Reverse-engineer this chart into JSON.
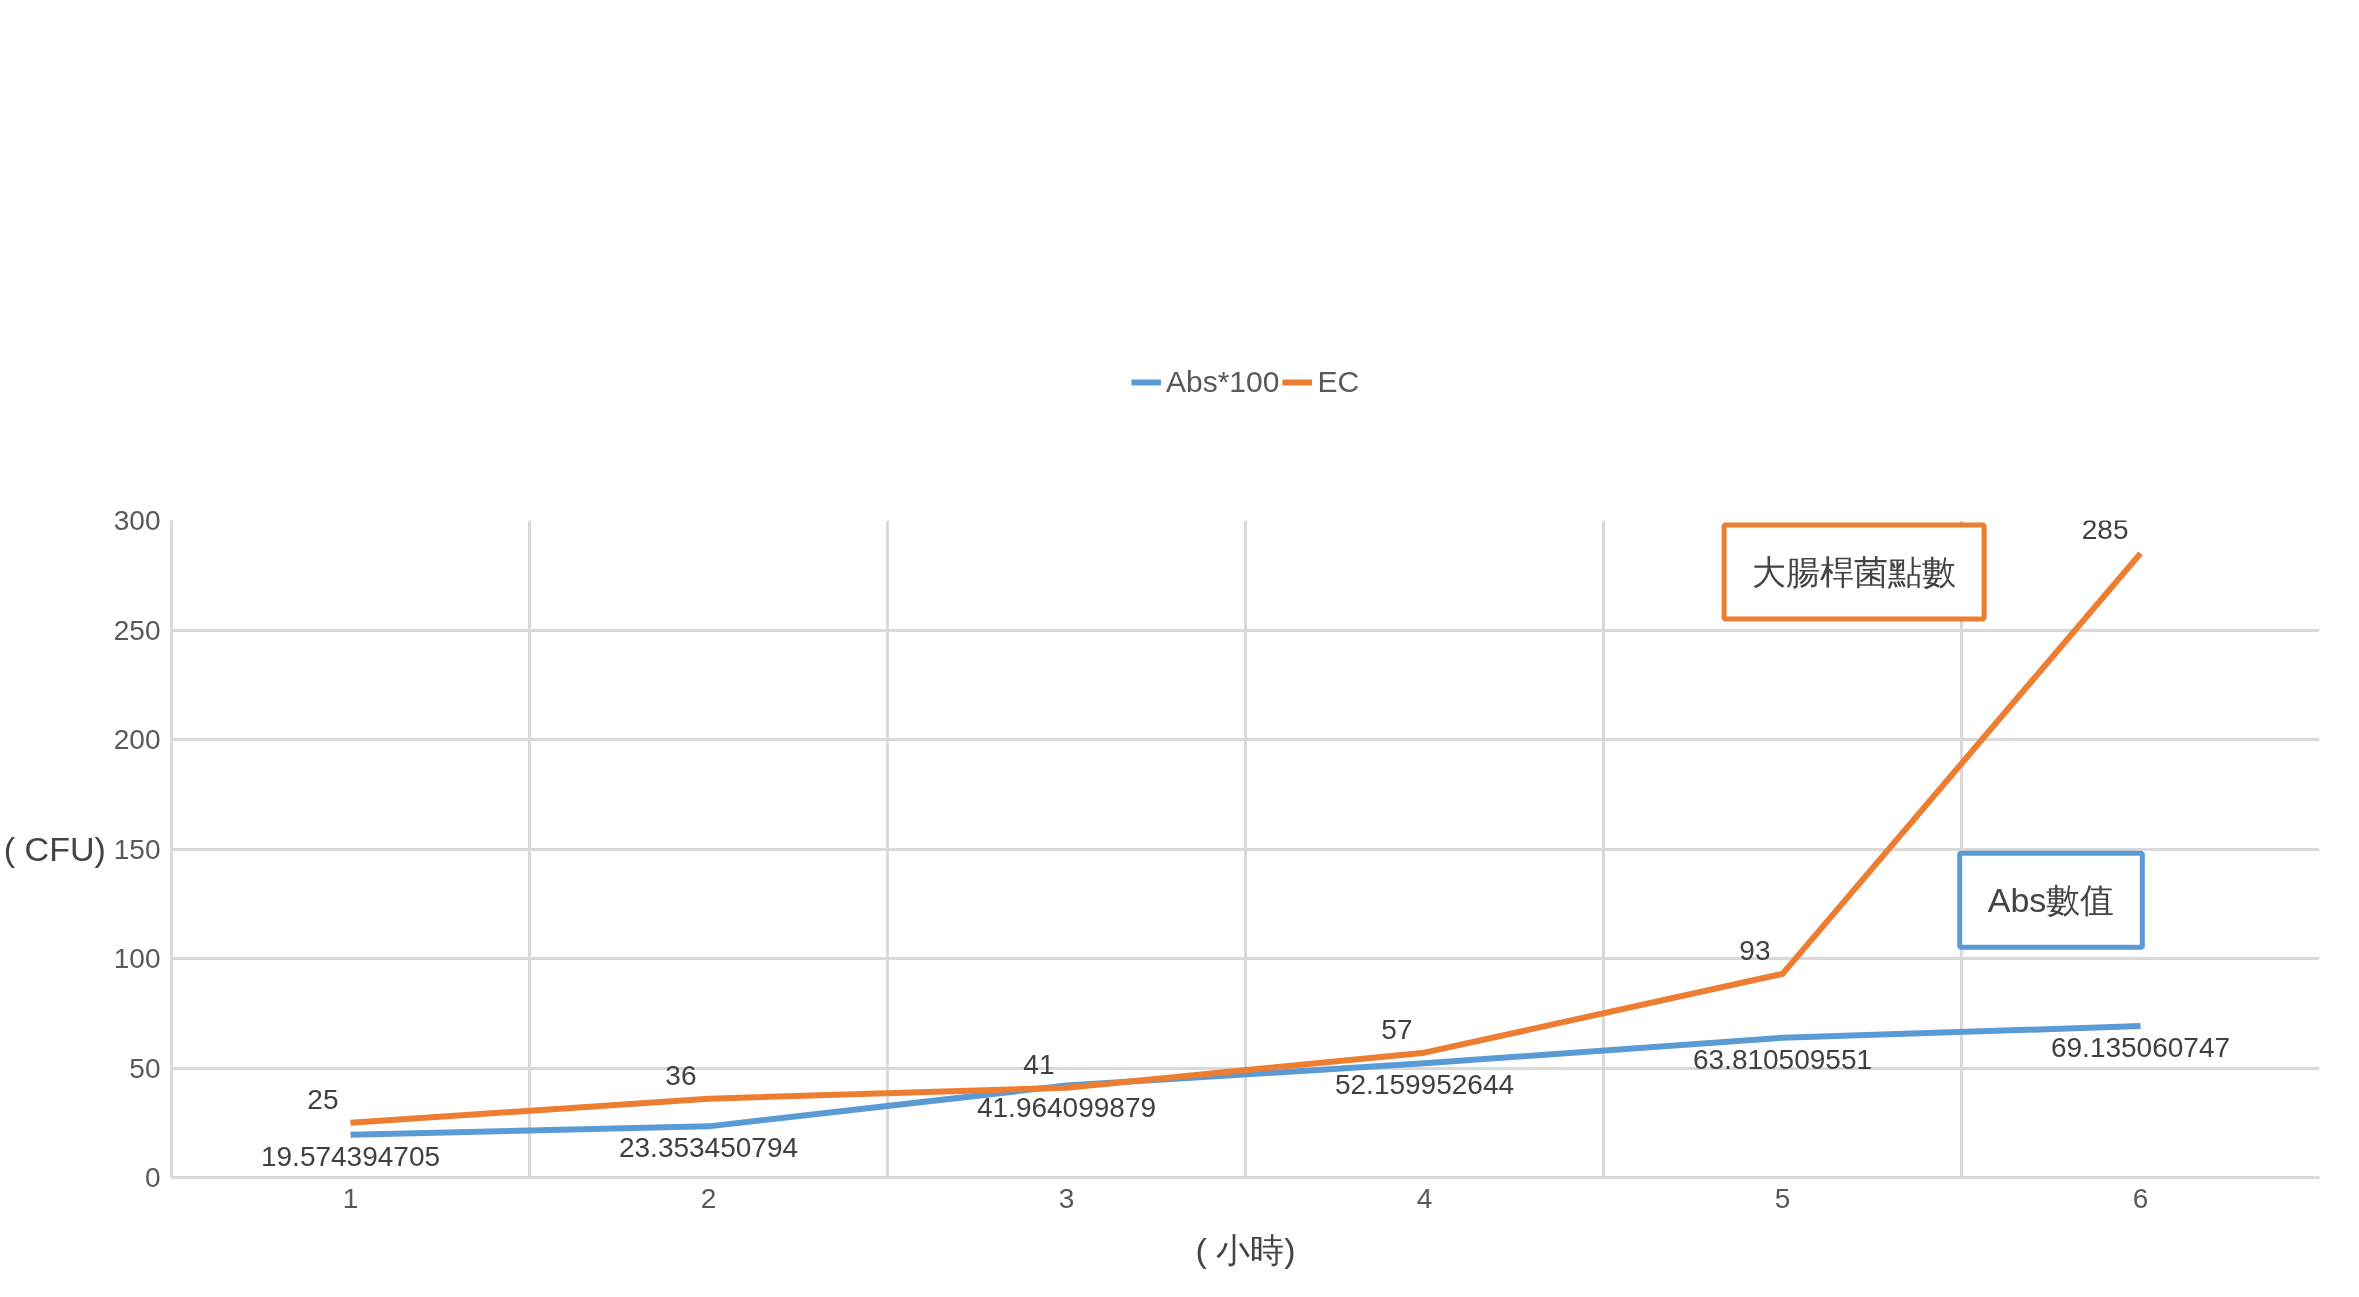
{
  "chart_data": {
    "type": "line",
    "xlabel": "( 小時)",
    "ylabel": "( CFU)",
    "categories": [
      "1",
      "2",
      "3",
      "4",
      "5",
      "6"
    ],
    "series": [
      {
        "name": "Abs*100",
        "color": "#5b9bd5",
        "values": [
          19.574394705,
          23.353450794,
          41.964099879,
          52.159952644,
          63.810509551,
          69.135060747
        ]
      },
      {
        "name": "EC",
        "color": "#ed7d31",
        "values": [
          25,
          36,
          41,
          57,
          93,
          285
        ]
      }
    ],
    "ylim": [
      0,
      300
    ],
    "yticks": [
      0,
      50,
      100,
      150,
      200,
      250,
      300
    ],
    "grid": true,
    "legend": "top",
    "data_labels": true,
    "marker": "none",
    "line_style": "solid",
    "annotations": [
      "Abs數值",
      "大腸桿菌點數"
    ]
  }
}
